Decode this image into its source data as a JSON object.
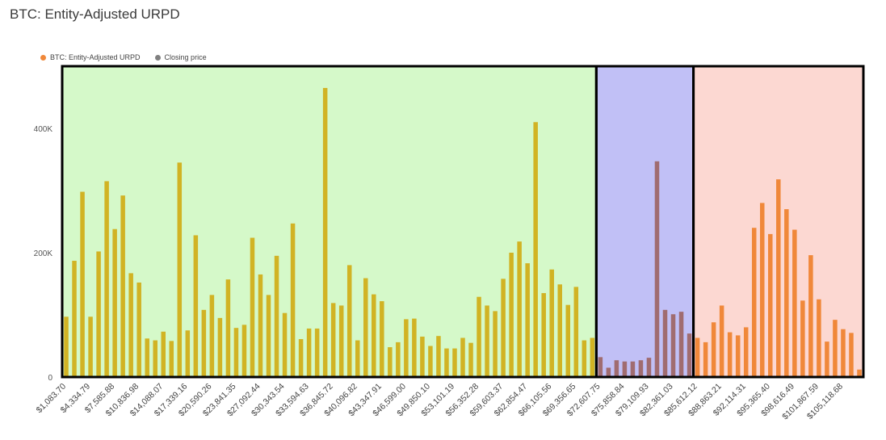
{
  "title": "BTC: Entity-Adjusted URPD",
  "legend": [
    {
      "label": "BTC: Entity-Adjusted URPD",
      "color": "#f0883a"
    },
    {
      "label": "Closing price",
      "color": "#808080"
    }
  ],
  "chart_data": {
    "type": "bar",
    "title": "BTC: Entity-Adjusted URPD",
    "xlabel": "",
    "ylabel": "",
    "ylim": [
      0,
      500000
    ],
    "yticks": [
      0,
      200000,
      400000
    ],
    "ytick_labels": [
      "0",
      "200K",
      "400K"
    ],
    "x_tick_labels": [
      "$1,083.70",
      "$4,334.79",
      "$7,585.88",
      "$10,836.98",
      "$14,088.07",
      "$17,339.16",
      "$20,590.26",
      "$23,841.35",
      "$27,092.44",
      "$30,343.54",
      "$33,594.63",
      "$36,845.72",
      "$40,096.82",
      "$43,347.91",
      "$46,599.00",
      "$49,850.10",
      "$53,101.19",
      "$56,352.28",
      "$59,603.37",
      "$62,854.47",
      "$66,105.56",
      "$69,356.65",
      "$72,607.75",
      "$75,858.84",
      "$79,109.93",
      "$82,361.03",
      "$85,612.12",
      "$88,863.21",
      "$92,114.31",
      "$95,365.40",
      "$98,616.49",
      "$101,867.59",
      "$105,118.68"
    ],
    "bin_width": 1083.7,
    "bar_values": [
      97000,
      187000,
      298000,
      97000,
      202000,
      315000,
      238000,
      292000,
      167000,
      152000,
      62000,
      59000,
      73000,
      58000,
      345000,
      75000,
      228000,
      108000,
      132000,
      95000,
      157000,
      79000,
      84000,
      224000,
      165000,
      132000,
      195000,
      103000,
      247000,
      61000,
      78000,
      78000,
      465000,
      119000,
      115000,
      180000,
      59000,
      159000,
      133000,
      122000,
      48000,
      56000,
      93000,
      94000,
      65000,
      50000,
      66000,
      46000,
      46000,
      63000,
      55000,
      129000,
      115000,
      106000,
      158000,
      200000,
      218000,
      183000,
      410000,
      135000,
      173000,
      149000,
      116000,
      145000,
      59000,
      63000,
      32000,
      15000,
      27000,
      25000,
      25000,
      27000,
      31000,
      347000,
      108000,
      101000,
      105000,
      70000,
      63000,
      56000,
      88000,
      115000,
      72000,
      67000,
      80000,
      240000,
      280000,
      230000,
      318000,
      270000,
      237000,
      123000,
      196000,
      125000,
      57000,
      92000,
      77000,
      71000,
      12000
    ],
    "bar_colors": {
      "green_zone": "#d1b324",
      "blue_zone": "#a06c70",
      "red_zone": "#f0883a"
    },
    "zones": [
      {
        "from_bar": 0,
        "to_bar": 66,
        "color": "#d5f9c9"
      },
      {
        "from_bar": 66,
        "to_bar": 78,
        "color": "#c1c0f6"
      },
      {
        "from_bar": 78,
        "to_bar": 99,
        "color": "#fcd8d2"
      }
    ]
  }
}
